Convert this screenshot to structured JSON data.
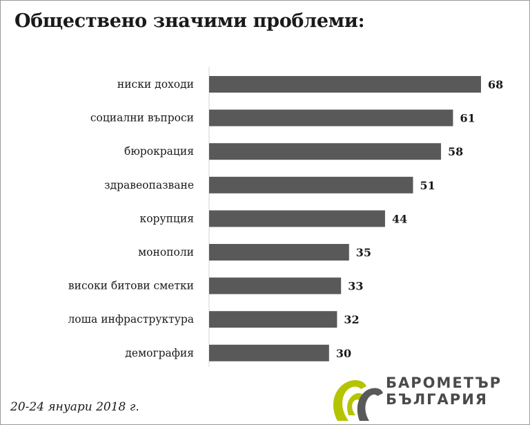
{
  "chart_data": {
    "type": "bar",
    "orientation": "horizontal",
    "title": "Обществено значими проблеми:",
    "categories": [
      "ниски доходи",
      "социални въпроси",
      "бюрокрация",
      "здравеопазване",
      "корупция",
      "монополи",
      "високи битови сметки",
      "лоша инфраструктура",
      "демография"
    ],
    "values": [
      68,
      61,
      58,
      51,
      44,
      35,
      33,
      32,
      30
    ],
    "xlim": [
      0,
      68
    ],
    "bar_color": "#595959",
    "xlabel": "",
    "ylabel": ""
  },
  "footnote": "20-24 януари 2018 г.",
  "logo": {
    "line1": "БАРОМЕТЪР",
    "line2": "БЪЛГАРИЯ",
    "accent_color": "#b5c400",
    "gray_color": "#595959"
  }
}
